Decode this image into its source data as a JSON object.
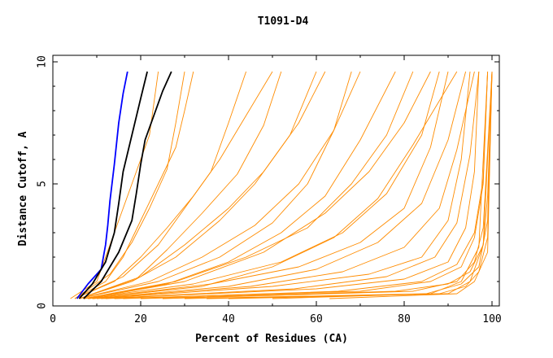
{
  "chart_data": {
    "type": "line",
    "title": "T1091-D4",
    "xlabel": "Percent of Residues (CA)",
    "ylabel": "Distance Cutoff, A",
    "xlim": [
      0,
      100
    ],
    "ylim": [
      0,
      10
    ],
    "x_ticks": [
      "0",
      "20",
      "40",
      "60",
      "80",
      "100"
    ],
    "y_ticks": [
      "0",
      "5",
      "10"
    ],
    "grid": false,
    "legend": "none",
    "colors": {
      "models": "#ff8c00",
      "highlight_blue": "#0000ff",
      "highlight_black": "#000000"
    },
    "series": [
      {
        "color": "#0000ff",
        "x": [
          5.5,
          8,
          11,
          12,
          12.5,
          13,
          14,
          15,
          16,
          17
        ],
        "y": [
          0.3,
          0.9,
          1.5,
          2.5,
          3.3,
          4.3,
          5.8,
          7.5,
          8.7,
          9.6
        ]
      },
      {
        "color": "#000000",
        "x": [
          6,
          9,
          12,
          14,
          15,
          16,
          18,
          20,
          21.5
        ],
        "y": [
          0.3,
          0.9,
          1.8,
          3.0,
          4.2,
          5.5,
          7.0,
          8.5,
          9.6
        ]
      },
      {
        "color": "#000000",
        "x": [
          7,
          11,
          15,
          18,
          19,
          20,
          21,
          23,
          25,
          27
        ],
        "y": [
          0.3,
          1.0,
          2.2,
          3.5,
          4.6,
          5.8,
          6.8,
          7.8,
          8.8,
          9.6
        ]
      }
    ],
    "orange_models": [
      {
        "x": [
          4,
          10,
          12,
          14,
          16,
          18,
          20,
          22,
          24
        ],
        "y": [
          0.3,
          1.0,
          2.0,
          3.0,
          4.0,
          5.0,
          6.0,
          7.0,
          9.6
        ]
      },
      {
        "x": [
          5,
          12,
          16,
          20,
          24,
          28,
          30,
          32
        ],
        "y": [
          0.3,
          1.0,
          2.0,
          3.5,
          5.0,
          6.5,
          8.0,
          9.6
        ]
      },
      {
        "x": [
          5,
          14,
          20,
          26,
          32,
          38,
          44,
          50
        ],
        "y": [
          0.3,
          1.0,
          2.0,
          3.2,
          4.5,
          6.0,
          7.8,
          9.6
        ]
      },
      {
        "x": [
          6,
          18,
          28,
          38,
          46,
          54,
          60
        ],
        "y": [
          0.3,
          1.0,
          2.0,
          3.5,
          5.0,
          7.0,
          9.6
        ]
      },
      {
        "x": [
          6,
          22,
          34,
          46,
          56,
          64,
          70
        ],
        "y": [
          0.3,
          1.0,
          2.0,
          3.3,
          5.0,
          7.2,
          9.6
        ]
      },
      {
        "x": [
          7,
          28,
          44,
          58,
          68,
          76,
          82
        ],
        "y": [
          0.3,
          1.0,
          2.0,
          3.2,
          5.0,
          7.0,
          9.6
        ]
      },
      {
        "x": [
          8,
          36,
          56,
          70,
          80,
          86,
          90
        ],
        "y": [
          0.3,
          0.9,
          1.6,
          2.6,
          4.0,
          6.5,
          9.6
        ]
      },
      {
        "x": [
          10,
          50,
          72,
          84,
          90,
          93,
          95
        ],
        "y": [
          0.3,
          0.8,
          1.3,
          2.0,
          3.5,
          6.0,
          9.6
        ]
      },
      {
        "x": [
          12,
          60,
          80,
          90,
          94,
          96,
          97
        ],
        "y": [
          0.3,
          0.7,
          1.1,
          1.8,
          3.2,
          5.5,
          9.6
        ]
      },
      {
        "x": [
          14,
          70,
          86,
          93,
          96,
          98,
          99
        ],
        "y": [
          0.3,
          0.6,
          1.0,
          1.6,
          2.8,
          5.0,
          9.6
        ]
      },
      {
        "x": [
          20,
          78,
          90,
          95,
          98,
          99,
          100
        ],
        "y": [
          0.3,
          0.6,
          0.9,
          1.4,
          2.5,
          4.5,
          9.6
        ]
      },
      {
        "x": [
          30,
          85,
          93,
          97,
          99,
          100
        ],
        "y": [
          0.3,
          0.5,
          0.9,
          1.6,
          3.5,
          9.6
        ]
      },
      {
        "x": [
          40,
          90,
          95,
          98,
          100
        ],
        "y": [
          0.3,
          0.5,
          1.0,
          2.5,
          9.6
        ]
      },
      {
        "x": [
          63,
          92,
          96,
          99,
          100
        ],
        "y": [
          0.3,
          0.5,
          1.0,
          2.2,
          9.6
        ]
      },
      {
        "x": [
          8,
          30,
          48,
          62,
          72,
          80,
          86
        ],
        "y": [
          0.3,
          1.0,
          2.2,
          3.8,
          5.5,
          7.5,
          9.6
        ]
      },
      {
        "x": [
          9,
          40,
          60,
          74,
          84,
          90,
          94
        ],
        "y": [
          0.3,
          0.8,
          1.5,
          2.6,
          4.2,
          6.8,
          9.6
        ]
      },
      {
        "x": [
          6,
          20,
          30,
          40,
          48,
          56,
          62
        ],
        "y": [
          0.3,
          1.2,
          2.5,
          4.0,
          5.5,
          7.5,
          9.6
        ]
      },
      {
        "x": [
          5,
          16,
          24,
          30,
          36,
          40,
          44
        ],
        "y": [
          0.3,
          1.2,
          2.5,
          4.0,
          5.5,
          7.5,
          9.6
        ]
      },
      {
        "x": [
          7,
          26,
          40,
          52,
          62,
          70,
          78
        ],
        "y": [
          0.3,
          0.9,
          1.8,
          3.0,
          4.5,
          6.8,
          9.6
        ]
      },
      {
        "x": [
          11,
          55,
          76,
          87,
          92,
          95,
          97
        ],
        "y": [
          0.3,
          0.7,
          1.2,
          2.0,
          3.4,
          6.2,
          9.6
        ]
      },
      {
        "x": [
          16,
          65,
          84,
          92,
          96,
          98,
          99
        ],
        "y": [
          0.3,
          0.6,
          1.0,
          1.7,
          3.0,
          5.2,
          9.6
        ]
      },
      {
        "x": [
          25,
          82,
          92,
          96,
          98,
          100
        ],
        "y": [
          0.3,
          0.6,
          1.0,
          1.8,
          3.2,
          9.6
        ]
      },
      {
        "x": [
          6,
          24,
          38,
          50,
          58,
          64,
          68
        ],
        "y": [
          0.3,
          1.0,
          2.0,
          3.4,
          5.0,
          7.2,
          9.6
        ]
      },
      {
        "x": [
          5,
          13,
          18,
          22,
          26,
          28,
          30
        ],
        "y": [
          0.3,
          1.3,
          2.6,
          4.0,
          5.6,
          7.5,
          9.6
        ]
      },
      {
        "x": [
          7,
          32,
          52,
          66,
          76,
          84,
          88
        ],
        "y": [
          0.3,
          0.9,
          1.8,
          3.0,
          4.6,
          7.0,
          9.6
        ]
      },
      {
        "x": [
          35,
          88,
          94,
          97,
          99,
          100
        ],
        "y": [
          0.3,
          0.5,
          0.8,
          1.4,
          2.8,
          9.6
        ]
      },
      {
        "x": [
          50,
          86,
          93,
          97,
          99
        ],
        "y": [
          0.3,
          0.5,
          1.0,
          2.4,
          9.6
        ]
      },
      {
        "x": [
          9,
          45,
          66,
          80,
          88,
          92,
          96
        ],
        "y": [
          0.3,
          0.8,
          1.4,
          2.4,
          4.0,
          6.4,
          9.6
        ]
      },
      {
        "x": [
          6,
          19,
          26,
          34,
          42,
          48,
          52
        ],
        "y": [
          0.3,
          1.1,
          2.3,
          3.8,
          5.4,
          7.4,
          9.6
        ]
      },
      {
        "x": [
          8,
          34,
          50,
          64,
          74,
          82,
          92
        ],
        "y": [
          0.3,
          0.8,
          1.6,
          2.8,
          4.4,
          6.6,
          9.6
        ]
      }
    ]
  }
}
